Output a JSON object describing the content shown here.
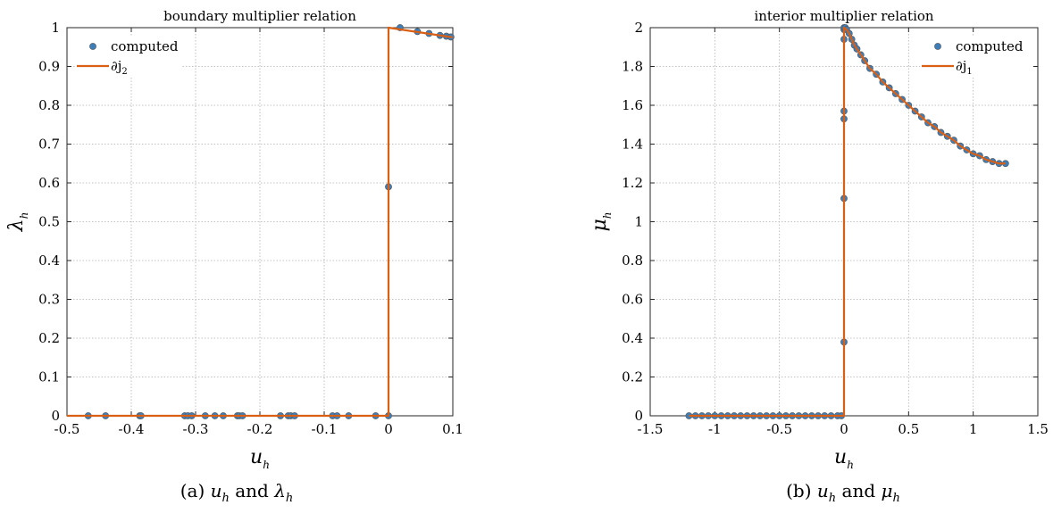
{
  "colors": {
    "computed": "#3d7db8",
    "computed_edge": "#555555",
    "line": "#d95f14",
    "grid": "#b0b0b0",
    "axis": "#262626"
  },
  "chart_data": [
    {
      "type": "scatter",
      "title": "boundary multiplier relation",
      "xlabel": "u",
      "xlabel_sub": "h",
      "ylabel": "λ",
      "ylabel_sub": "h",
      "xlim": [
        -0.5,
        0.1
      ],
      "ylim": [
        0,
        1
      ],
      "xticks": [
        -0.5,
        -0.4,
        -0.3,
        -0.2,
        -0.1,
        0,
        0.1
      ],
      "xtick_labels": [
        "-0.5",
        "-0.4",
        "-0.3",
        "-0.2",
        "-0.1",
        "0",
        "0.1"
      ],
      "yticks": [
        0,
        0.1,
        0.2,
        0.3,
        0.4,
        0.5,
        0.6,
        0.7,
        0.8,
        0.9,
        1
      ],
      "ytick_labels": [
        "0",
        "0.1",
        "0.2",
        "0.3",
        "0.4",
        "0.5",
        "0.6",
        "0.7",
        "0.8",
        "0.9",
        "1"
      ],
      "grid": true,
      "legend_placement": "top-left",
      "series": [
        {
          "name": "computed",
          "kind": "scatter",
          "x": [
            -0.467,
            -0.44,
            -0.387,
            -0.385,
            -0.317,
            -0.312,
            -0.306,
            -0.285,
            -0.27,
            -0.257,
            -0.235,
            -0.232,
            -0.227,
            -0.168,
            -0.156,
            -0.152,
            -0.146,
            -0.087,
            -0.08,
            -0.062,
            -0.02,
            0,
            0,
            0.018,
            0.045,
            0.063,
            0.08,
            0.09,
            0.097
          ],
          "y": [
            0,
            0,
            0,
            0,
            0,
            0,
            0,
            0,
            0,
            0,
            0,
            0,
            0,
            0,
            0,
            0,
            0,
            0,
            0,
            0,
            0,
            0,
            0.59,
            1.0,
            0.99,
            0.985,
            0.98,
            0.978,
            0.976
          ]
        },
        {
          "name": "∂j",
          "name_sub": "2",
          "kind": "line",
          "x": [
            -0.5,
            0,
            0,
            0.1
          ],
          "y": [
            0,
            0,
            1,
            0.975
          ]
        }
      ]
    },
    {
      "type": "scatter",
      "title": "interior multiplier relation",
      "xlabel": "u",
      "xlabel_sub": "h",
      "ylabel": "μ",
      "ylabel_sub": "h",
      "xlim": [
        -1.5,
        1.5
      ],
      "ylim": [
        0,
        2
      ],
      "xticks": [
        -1.5,
        -1,
        -0.5,
        0,
        0.5,
        1,
        1.5
      ],
      "xtick_labels": [
        "-1.5",
        "-1",
        "-0.5",
        "0",
        "0.5",
        "1",
        "1.5"
      ],
      "yticks": [
        0,
        0.2,
        0.4,
        0.6,
        0.8,
        1,
        1.2,
        1.4,
        1.6,
        1.8,
        2
      ],
      "ytick_labels": [
        "0",
        "0.2",
        "0.4",
        "0.6",
        "0.8",
        "1",
        "1.2",
        "1.4",
        "1.6",
        "1.8",
        "2"
      ],
      "grid": true,
      "legend_placement": "top-right",
      "series": [
        {
          "name": "computed",
          "kind": "scatter",
          "x": [
            -1.2,
            -1.15,
            -1.1,
            -1.05,
            -1.0,
            -0.95,
            -0.9,
            -0.85,
            -0.8,
            -0.75,
            -0.7,
            -0.65,
            -0.6,
            -0.55,
            -0.5,
            -0.45,
            -0.4,
            -0.35,
            -0.3,
            -0.25,
            -0.2,
            -0.15,
            -0.1,
            -0.05,
            -0.02,
            0,
            0,
            0,
            0,
            0,
            0,
            0,
            0.01,
            0.02,
            0.04,
            0.06,
            0.08,
            0.1,
            0.13,
            0.16,
            0.2,
            0.25,
            0.3,
            0.35,
            0.4,
            0.45,
            0.5,
            0.55,
            0.6,
            0.65,
            0.7,
            0.75,
            0.8,
            0.85,
            0.9,
            0.95,
            1.0,
            1.05,
            1.1,
            1.15,
            1.2,
            1.25
          ],
          "y": [
            0,
            0,
            0,
            0,
            0,
            0,
            0,
            0,
            0,
            0,
            0,
            0,
            0,
            0,
            0,
            0,
            0,
            0,
            0,
            0,
            0,
            0,
            0,
            0,
            0,
            0.38,
            1.12,
            1.53,
            1.57,
            1.94,
            1.99,
            2.0,
            2.0,
            1.99,
            1.97,
            1.94,
            1.91,
            1.89,
            1.86,
            1.83,
            1.79,
            1.76,
            1.72,
            1.69,
            1.66,
            1.63,
            1.6,
            1.57,
            1.54,
            1.51,
            1.49,
            1.46,
            1.44,
            1.42,
            1.39,
            1.37,
            1.35,
            1.34,
            1.32,
            1.31,
            1.3,
            1.3
          ]
        },
        {
          "name": "∂j",
          "name_sub": "1",
          "kind": "line",
          "x": [
            -1.2,
            0,
            0,
            0.02,
            0.04,
            0.06,
            0.08,
            0.1,
            0.13,
            0.16,
            0.2,
            0.25,
            0.3,
            0.35,
            0.4,
            0.45,
            0.5,
            0.55,
            0.6,
            0.65,
            0.7,
            0.75,
            0.8,
            0.85,
            0.9,
            0.95,
            1.0,
            1.05,
            1.1,
            1.15,
            1.2,
            1.25
          ],
          "y": [
            0,
            0,
            2.0,
            1.99,
            1.97,
            1.94,
            1.91,
            1.89,
            1.86,
            1.83,
            1.79,
            1.76,
            1.72,
            1.69,
            1.66,
            1.63,
            1.6,
            1.57,
            1.54,
            1.51,
            1.49,
            1.46,
            1.44,
            1.42,
            1.39,
            1.37,
            1.35,
            1.34,
            1.32,
            1.31,
            1.3,
            1.3
          ]
        }
      ]
    }
  ],
  "captions": [
    {
      "prefix": "(a)",
      "var1": "u",
      "var1_sub": "h",
      "and": "and",
      "var2": "λ",
      "var2_sub": "h"
    },
    {
      "prefix": "(b)",
      "var1": "u",
      "var1_sub": "h",
      "and": "and",
      "var2": "μ",
      "var2_sub": "h"
    }
  ]
}
